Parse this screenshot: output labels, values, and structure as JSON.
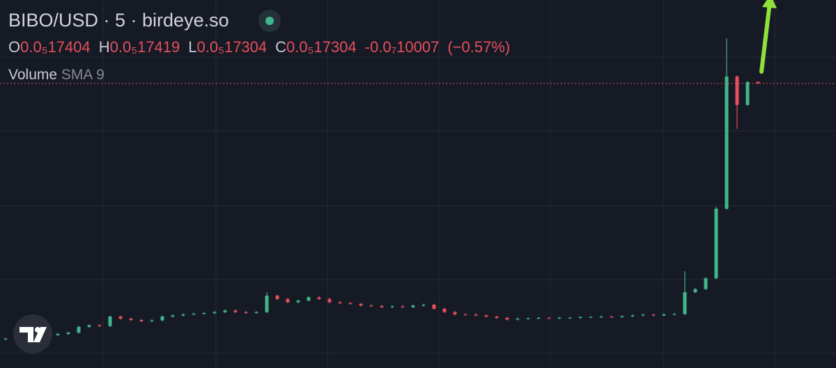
{
  "chart_data": {
    "type": "candlestick",
    "title": "BIBO/USD · 5 · birdeye.so",
    "ohlc_legend": [
      {
        "key": "O",
        "value": "0.0₅17404"
      },
      {
        "key": "H",
        "value": "0.0₅17419"
      },
      {
        "key": "L",
        "value": "0.0₅17304"
      },
      {
        "key": "C",
        "value": "0.0₅17304"
      }
    ],
    "change": "-0.0₇10007",
    "change_percent": "(−0.57%)",
    "indicator": "Volume",
    "indicator_params": "SMA 9",
    "ylim": [
      0,
      2.238e-06
    ],
    "colors": {
      "up": "#3fb68b",
      "down": "#e5505c"
    },
    "last_price_line": true,
    "open": [
      1.75e-07,
      1.78e-07,
      1.85e-07,
      1.9e-07,
      1.95e-07,
      2e-07,
      2.07e-07,
      2.15e-07,
      2.5e-07,
      2.6e-07,
      2.55e-07,
      3.13e-07,
      3e-07,
      2.92e-07,
      2.85e-07,
      2.9e-07,
      3.13e-07,
      3.2e-07,
      3.26e-07,
      3.3e-07,
      3.34e-07,
      3.4e-07,
      3.5e-07,
      3.4e-07,
      3.35e-07,
      3.4e-07,
      4.4e-07,
      4.2e-07,
      4e-07,
      4.1e-07,
      4.3e-07,
      4.2e-07,
      4e-07,
      3.95e-07,
      3.9e-07,
      3.8e-07,
      3.77e-07,
      3.7e-07,
      3.75e-07,
      3.7e-07,
      3.8e-07,
      3.85e-07,
      3.6e-07,
      3.4e-07,
      3.26e-07,
      3.25e-07,
      3.2e-07,
      3.13e-07,
      3.05e-07,
      2.95e-07,
      3e-07,
      3.02e-07,
      3.04e-07,
      3.03e-07,
      3.05e-07,
      3.05e-07,
      3.1e-07,
      3.1e-07,
      3.12e-07,
      3.1e-07,
      3.15e-07,
      3.2e-07,
      3.24e-07,
      3.2e-07,
      3.26e-07,
      3.28e-07,
      4.61e-07,
      4.8e-07,
      5.46e-07,
      9.69e-07,
      1.773e-06,
      1.6e-06,
      1.7404e-06
    ],
    "high": [
      1.84e-07,
      1.91e-07,
      1.96e-07,
      2.01e-07,
      2.06e-07,
      2.13e-07,
      2.21e-07,
      2.56e-07,
      2.66e-07,
      2.66e-07,
      3.19e-07,
      3.19e-07,
      3.06e-07,
      2.98e-07,
      2.96e-07,
      3.19e-07,
      3.26e-07,
      3.32e-07,
      3.36e-07,
      3.4e-07,
      3.46e-07,
      3.56e-07,
      3.56e-07,
      3.46e-07,
      3.46e-07,
      4.6e-07,
      4.46e-07,
      4.26e-07,
      4.16e-07,
      4.36e-07,
      4.36e-07,
      4.26e-07,
      4.06e-07,
      4.01e-07,
      3.96e-07,
      3.86e-07,
      3.83e-07,
      3.81e-07,
      3.81e-07,
      3.86e-07,
      3.91e-07,
      3.91e-07,
      3.66e-07,
      3.46e-07,
      3.32e-07,
      3.31e-07,
      3.26e-07,
      3.19e-07,
      3.11e-07,
      3.06e-07,
      3.08e-07,
      3.1e-07,
      3.1e-07,
      3.11e-07,
      3.11e-07,
      3.16e-07,
      3.16e-07,
      3.18e-07,
      3.18e-07,
      3.21e-07,
      3.26e-07,
      3.3e-07,
      3.3e-07,
      3.32e-07,
      3.34e-07,
      5.88e-07,
      4.86e-07,
      5.52e-07,
      9.8e-07,
      2.005e-06,
      1.78e-06,
      1.745e-06,
      1.7419e-06
    ],
    "low": [
      1.69e-07,
      1.72e-07,
      1.79e-07,
      1.84e-07,
      1.89e-07,
      1.94e-07,
      2.01e-07,
      2.09e-07,
      2.44e-07,
      2.49e-07,
      2.49e-07,
      2.94e-07,
      2.86e-07,
      2.79e-07,
      2.79e-07,
      2.84e-07,
      3.07e-07,
      3.14e-07,
      3.2e-07,
      3.24e-07,
      3.28e-07,
      3.34e-07,
      3.34e-07,
      3.29e-07,
      3.29e-07,
      3.34e-07,
      4.14e-07,
      3.94e-07,
      3.94e-07,
      4.04e-07,
      4.14e-07,
      3.94e-07,
      3.89e-07,
      3.84e-07,
      3.74e-07,
      3.71e-07,
      3.64e-07,
      3.64e-07,
      3.64e-07,
      3.64e-07,
      3.74e-07,
      3.54e-07,
      3.34e-07,
      3.2e-07,
      3.19e-07,
      3.14e-07,
      3.07e-07,
      2.99e-07,
      2.89e-07,
      2.89e-07,
      2.94e-07,
      2.96e-07,
      2.97e-07,
      2.97e-07,
      2.99e-07,
      2.99e-07,
      3.04e-07,
      3.04e-07,
      3.04e-07,
      3.04e-07,
      3.09e-07,
      3.14e-07,
      3.14e-07,
      3.14e-07,
      3.2e-07,
      3.22e-07,
      4.55e-07,
      4.74e-07,
      5.4e-07,
      9.63e-07,
      1.455e-06,
      1.594e-06,
      1.7304e-06
    ],
    "close": [
      1.78e-07,
      1.85e-07,
      1.9e-07,
      1.95e-07,
      2e-07,
      2.07e-07,
      2.15e-07,
      2.5e-07,
      2.6e-07,
      2.55e-07,
      3.13e-07,
      3e-07,
      2.92e-07,
      2.85e-07,
      2.9e-07,
      3.13e-07,
      3.2e-07,
      3.26e-07,
      3.3e-07,
      3.34e-07,
      3.4e-07,
      3.5e-07,
      3.4e-07,
      3.35e-07,
      3.4e-07,
      4.4e-07,
      4.2e-07,
      4e-07,
      4.1e-07,
      4.3e-07,
      4.2e-07,
      4e-07,
      3.95e-07,
      3.9e-07,
      3.8e-07,
      3.77e-07,
      3.7e-07,
      3.75e-07,
      3.7e-07,
      3.8e-07,
      3.85e-07,
      3.6e-07,
      3.4e-07,
      3.26e-07,
      3.25e-07,
      3.2e-07,
      3.13e-07,
      3.05e-07,
      2.95e-07,
      3e-07,
      3.02e-07,
      3.04e-07,
      3.03e-07,
      3.05e-07,
      3.05e-07,
      3.1e-07,
      3.1e-07,
      3.12e-07,
      3.1e-07,
      3.15e-07,
      3.2e-07,
      3.24e-07,
      3.2e-07,
      3.26e-07,
      3.28e-07,
      4.61e-07,
      4.8e-07,
      5.46e-07,
      9.69e-07,
      1.773e-06,
      1.6e-06,
      1.739e-06,
      1.7304e-06
    ]
  }
}
